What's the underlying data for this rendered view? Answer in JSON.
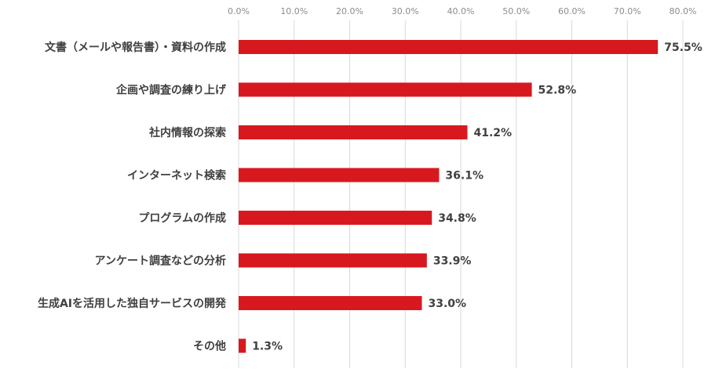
{
  "chart_data": {
    "type": "bar",
    "orientation": "horizontal",
    "title": "",
    "xlabel": "",
    "ylabel": "",
    "categories": [
      "文書（メールや報告書）・資料の作成",
      "企画や調査の練り上げ",
      "社内情報の探索",
      "インターネット検索",
      "プログラムの作成",
      "アンケート調査などの分析",
      "生成AIを活用した独自サービスの開発",
      "その他"
    ],
    "values": [
      75.5,
      52.8,
      41.2,
      36.1,
      34.8,
      33.9,
      33.0,
      1.3
    ],
    "value_labels": [
      "75.5%",
      "52.8%",
      "41.2%",
      "36.1%",
      "34.8%",
      "33.9%",
      "33.0%",
      "1.3%"
    ],
    "xlim": [
      0,
      80
    ],
    "ticks": [
      0,
      10,
      20,
      30,
      40,
      50,
      60,
      70,
      80
    ],
    "tick_labels": [
      "0.0%",
      "10.0%",
      "20.0%",
      "30.0%",
      "40.0%",
      "50.0%",
      "60.0%",
      "70.0%",
      "80.0%"
    ],
    "tick_position": "top",
    "grid": true,
    "legend": "none",
    "bar_color": "#d7191f",
    "grid_color": "#d9d9d9",
    "text_color": "#404040",
    "tick_color": "#8c8c8c"
  }
}
